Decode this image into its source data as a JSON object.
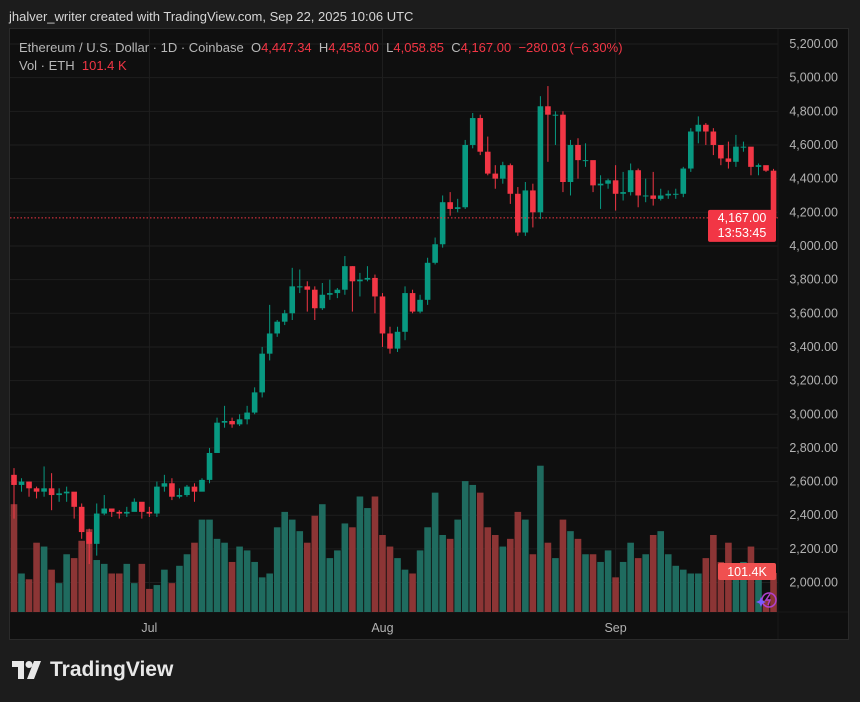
{
  "credit": "jhalver_writer created with TradingView.com, Sep 22, 2025 10:06 UTC",
  "legend": {
    "symbol": "Ethereum / U.S. Dollar · 1D · Coinbase",
    "o_label": "O",
    "o": "4,447.34",
    "h_label": "H",
    "h": "4,458.00",
    "l_label": "L",
    "l": "4,058.85",
    "c_label": "C",
    "c": "4,167.00",
    "change": "−280.03 (−6.30%)",
    "vol_label": "Vol · ETH",
    "vol": "101.4 K"
  },
  "price_axis": [
    "5,200.00",
    "5,000.00",
    "4,800.00",
    "4,600.00",
    "4,400.00",
    "4,200.00",
    "4,000.00",
    "3,800.00",
    "3,600.00",
    "3,400.00",
    "3,200.00",
    "3,000.00",
    "2,800.00",
    "2,600.00",
    "2,400.00",
    "2,200.00",
    "2,000.00"
  ],
  "price_axis_values": [
    5200,
    5000,
    4800,
    4600,
    4400,
    4200,
    4000,
    3800,
    3600,
    3400,
    3200,
    3000,
    2800,
    2600,
    2400,
    2200,
    2000
  ],
  "time_axis": [
    {
      "label": "Jul",
      "index": 18
    },
    {
      "label": "Aug",
      "index": 49
    },
    {
      "label": "Sep",
      "index": 80
    }
  ],
  "last_price": {
    "value": 4167.0,
    "label": "4,167.00",
    "countdown": "13:53:45"
  },
  "last_volume_label": "101.4K",
  "colors": {
    "up": "#089981",
    "down": "#f23645",
    "vol_up": "#1f6b5f",
    "vol_down": "#8c3535",
    "background": "#0f0f0f"
  },
  "logo_text": "TradingView",
  "chart_data": {
    "type": "candlestick",
    "closes": [
      2580,
      2600,
      2560,
      2540,
      2560,
      2520,
      2530,
      2540,
      2450,
      2300,
      2230,
      2410,
      2440,
      2420,
      2410,
      2420,
      2480,
      2420,
      2410,
      2570,
      2590,
      2510,
      2520,
      2570,
      2540,
      2610,
      2770,
      2950,
      2960,
      2940,
      2970,
      3010,
      3130,
      3360,
      3480,
      3550,
      3600,
      3760,
      3760,
      3740,
      3630,
      3710,
      3720,
      3740,
      3880,
      3790,
      3800,
      3810,
      3700,
      3480,
      3390,
      3490,
      3720,
      3610,
      3680,
      3900,
      4010,
      4260,
      4220,
      4230,
      4600,
      4760,
      4560,
      4430,
      4400,
      4480,
      4310,
      4080,
      4330,
      4200,
      4830,
      4780,
      4780,
      4380,
      4600,
      4510,
      4510,
      4360,
      4370,
      4390,
      4310,
      4320,
      4450,
      4300,
      4300,
      4280,
      4300,
      4310,
      4310,
      4460,
      4680,
      4720,
      4680,
      4600,
      4520,
      4500,
      4590,
      4590,
      4470,
      4480,
      4447.34,
      4167
    ],
    "first_open": 2640,
    "highs_wick": [
      2680,
      2620,
      2600,
      2570,
      2690,
      2650,
      2560,
      2570,
      2520,
      2470,
      2320,
      2470,
      2520,
      2440,
      2430,
      2450,
      2500,
      2460,
      2450,
      2600,
      2640,
      2620,
      2560,
      2580,
      2590,
      2620,
      2800,
      2980,
      3050,
      2980,
      3000,
      3050,
      3160,
      3400,
      3650,
      3560,
      3620,
      3870,
      3860,
      3790,
      3760,
      3780,
      3800,
      3750,
      3940,
      3880,
      3840,
      3880,
      3830,
      3720,
      3520,
      3520,
      3760,
      3740,
      3710,
      3930,
      4050,
      4300,
      4320,
      4280,
      4630,
      4790,
      4780,
      4650,
      4480,
      4500,
      4490,
      4350,
      4380,
      4370,
      4890,
      4950,
      4800,
      4800,
      4630,
      4640,
      4610,
      4480,
      4420,
      4400,
      4480,
      4440,
      4490,
      4460,
      4400,
      4440,
      4340,
      4330,
      4340,
      4470,
      4700,
      4770,
      4730,
      4700,
      4580,
      4620,
      4660,
      4620,
      4500,
      4490,
      4458,
      4458
    ],
    "lows_wick": [
      2380,
      2540,
      2510,
      2500,
      2510,
      2430,
      2480,
      2480,
      2380,
      2260,
      2110,
      2160,
      2400,
      2390,
      2380,
      2390,
      2440,
      2380,
      2390,
      2390,
      2540,
      2490,
      2500,
      2510,
      2480,
      2570,
      2590,
      2780,
      2920,
      2920,
      2930,
      2940,
      3000,
      3100,
      3320,
      3460,
      3530,
      3560,
      3720,
      3610,
      3560,
      3620,
      3680,
      3690,
      3710,
      3610,
      3700,
      3790,
      3600,
      3400,
      3360,
      3370,
      3440,
      3600,
      3600,
      3650,
      3890,
      3990,
      4180,
      4200,
      4220,
      4580,
      4540,
      4420,
      4340,
      4370,
      4250,
      4060,
      4060,
      4110,
      4160,
      4500,
      4600,
      4320,
      4300,
      4400,
      4470,
      4320,
      4220,
      4340,
      4210,
      4270,
      4300,
      4230,
      4260,
      4240,
      4270,
      4280,
      4280,
      4290,
      4440,
      4610,
      4600,
      4540,
      4480,
      4460,
      4470,
      4560,
      4420,
      4420,
      4440,
      4058.85
    ],
    "volume_k": [
      280,
      100,
      85,
      180,
      170,
      110,
      75,
      150,
      140,
      185,
      215,
      135,
      125,
      100,
      100,
      125,
      75,
      125,
      60,
      70,
      110,
      75,
      120,
      150,
      180,
      240,
      240,
      190,
      180,
      130,
      170,
      160,
      130,
      90,
      100,
      220,
      260,
      240,
      210,
      180,
      250,
      280,
      140,
      160,
      230,
      220,
      300,
      270,
      300,
      200,
      170,
      140,
      110,
      100,
      160,
      220,
      310,
      200,
      190,
      240,
      340,
      330,
      310,
      220,
      200,
      170,
      190,
      260,
      240,
      150,
      380,
      180,
      140,
      240,
      210,
      190,
      150,
      150,
      130,
      160,
      90,
      130,
      180,
      140,
      150,
      200,
      210,
      150,
      120,
      110,
      100,
      100,
      140,
      200,
      130,
      180,
      110,
      130,
      170,
      100,
      30,
      101.4
    ],
    "ylim": [
      1800,
      5300
    ]
  }
}
